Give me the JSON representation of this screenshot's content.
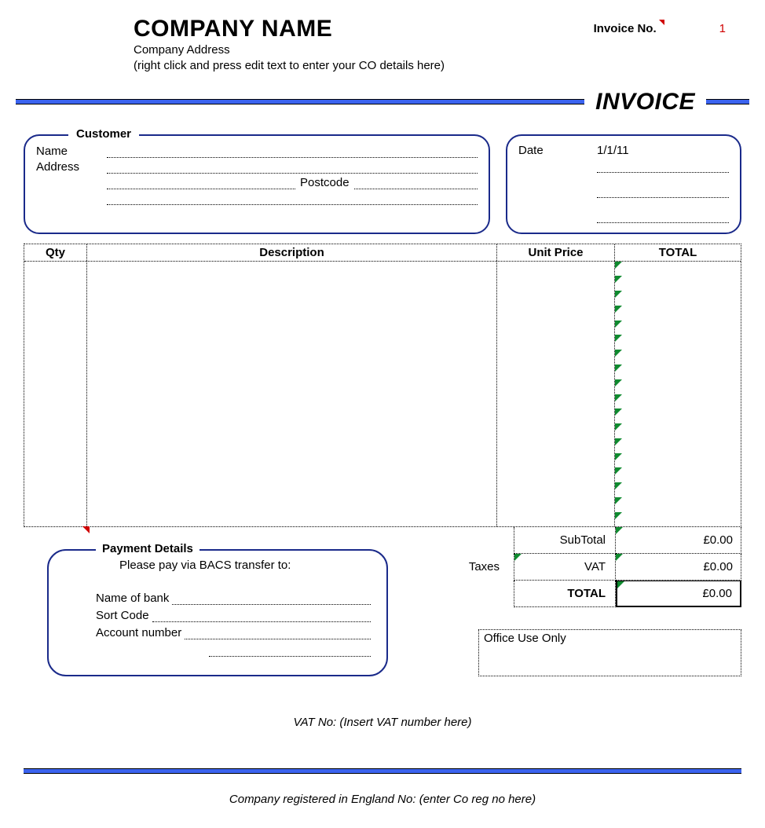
{
  "header": {
    "company_name": "COMPANY NAME",
    "company_address": "Company Address",
    "company_hint": "(right click and press edit text to enter your CO details here)",
    "invoice_no_label": "Invoice No.",
    "invoice_no_value": "1",
    "invoice_title": "INVOICE"
  },
  "customer": {
    "legend": "Customer",
    "name_label": "Name",
    "address_label": "Address",
    "postcode_label": "Postcode"
  },
  "date": {
    "label": "Date",
    "value": "1/1/11"
  },
  "items": {
    "columns": {
      "qty": "Qty",
      "desc": "Description",
      "unit": "Unit Price",
      "total": "TOTAL"
    },
    "row_count": 18,
    "marker_color": "#0f8a2f",
    "error_marker_color": "#d00000"
  },
  "totals": {
    "subtotal_label": "SubTotal",
    "subtotal_value": "£0.00",
    "taxes_label": "Taxes",
    "vat_label": "VAT",
    "vat_value": "£0.00",
    "total_label": "TOTAL",
    "total_value": "£0.00"
  },
  "payment": {
    "legend": "Payment Details",
    "instruction": "Please pay via BACS transfer to:",
    "bank_label": "Name of bank",
    "sort_label": "Sort Code",
    "account_label": "Account number"
  },
  "office": {
    "label": "Office Use Only"
  },
  "footer": {
    "vat_line": "VAT No: (Insert VAT number here)",
    "reg_line": "Company registered in England No: (enter Co reg no here)"
  },
  "colors": {
    "rule_blue": "#3b63ef",
    "border_navy": "#1a2a8a",
    "red": "#d00000"
  }
}
